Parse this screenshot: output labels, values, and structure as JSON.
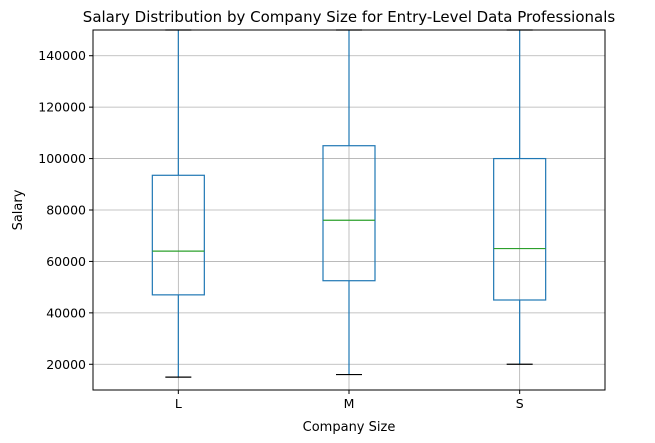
{
  "chart_data": {
    "type": "box",
    "title": "Salary Distribution by Company Size for Entry-Level Data Professionals",
    "xlabel": "Company Size",
    "ylabel": "Salary",
    "ylim": [
      10000,
      150000
    ],
    "yticks": [
      20000,
      40000,
      60000,
      80000,
      100000,
      120000,
      140000
    ],
    "grid": true,
    "categories": [
      "L",
      "M",
      "S"
    ],
    "boxes": [
      {
        "category": "L",
        "whislo": 15000,
        "q1": 47000,
        "median": 64000,
        "q3": 93500,
        "whishi": 150000
      },
      {
        "category": "M",
        "whislo": 16000,
        "q1": 52500,
        "median": 76000,
        "q3": 105000,
        "whishi": 150000
      },
      {
        "category": "S",
        "whislo": 20000,
        "q1": 45000,
        "median": 65000,
        "q3": 100000,
        "whishi": 150000
      }
    ],
    "colors": {
      "box": "#1f77b4",
      "median": "#2ca02c",
      "cap": "#000000",
      "grid": "#b0b0b0"
    }
  }
}
